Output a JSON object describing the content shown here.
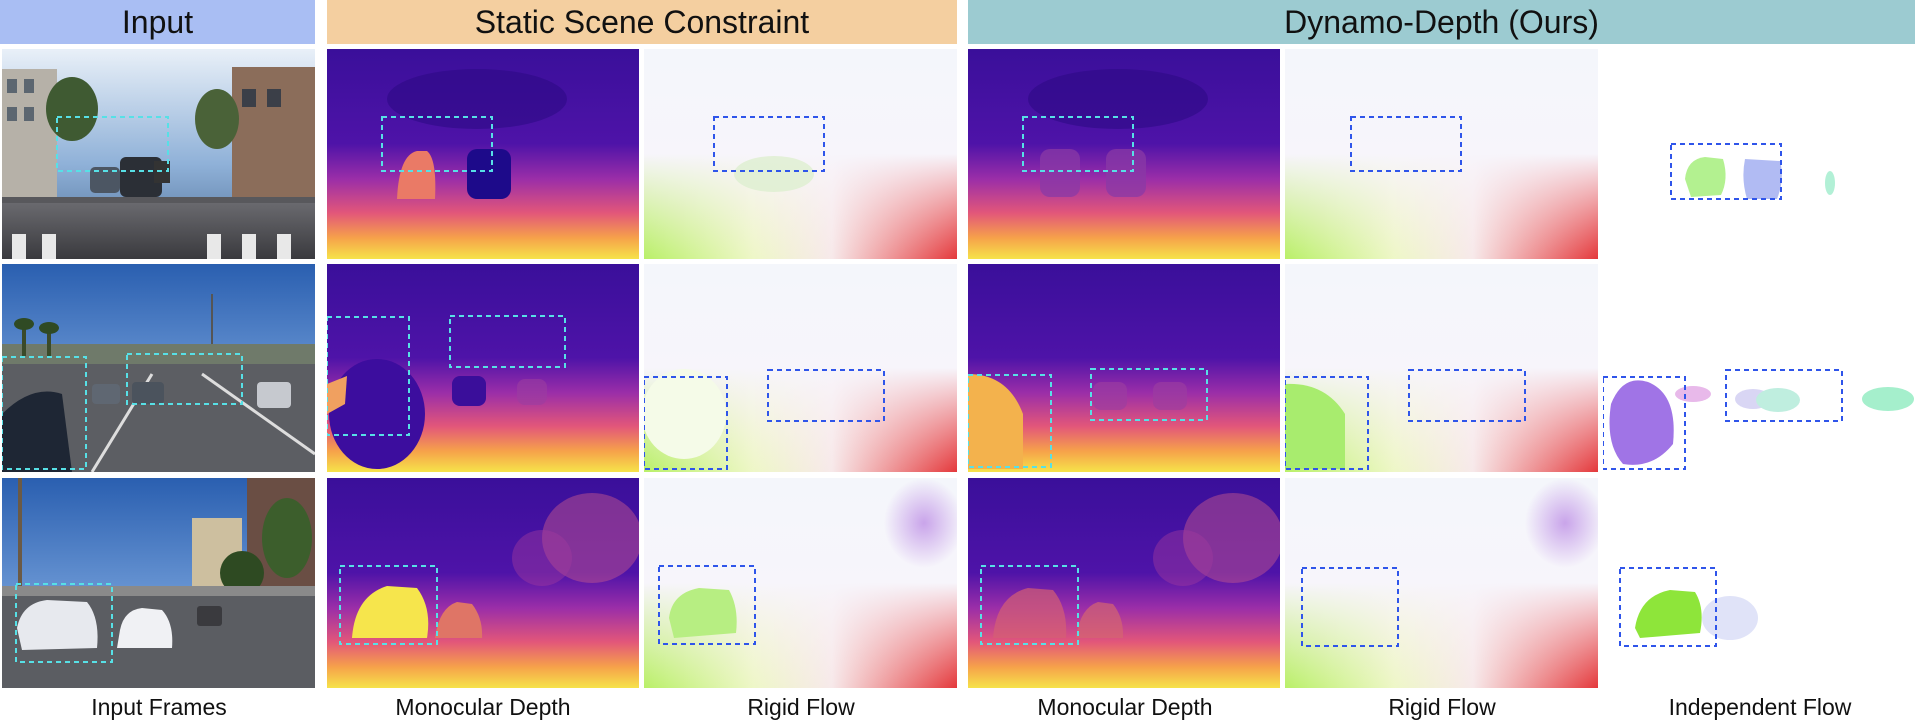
{
  "headers": {
    "input": "Input",
    "static": "Static Scene Constraint",
    "dynamo": "Dynamo-Depth (Ours)"
  },
  "captions": [
    "Input Frames",
    "Monocular Depth",
    "Rigid Flow",
    "Monocular Depth",
    "Rigid Flow",
    "Independent Flow"
  ],
  "colors": {
    "input_box": "#57e0e6",
    "flow_box": "#2f55ea",
    "depth_far": "#3a0f9a",
    "depth_near": "#f6e34a"
  }
}
